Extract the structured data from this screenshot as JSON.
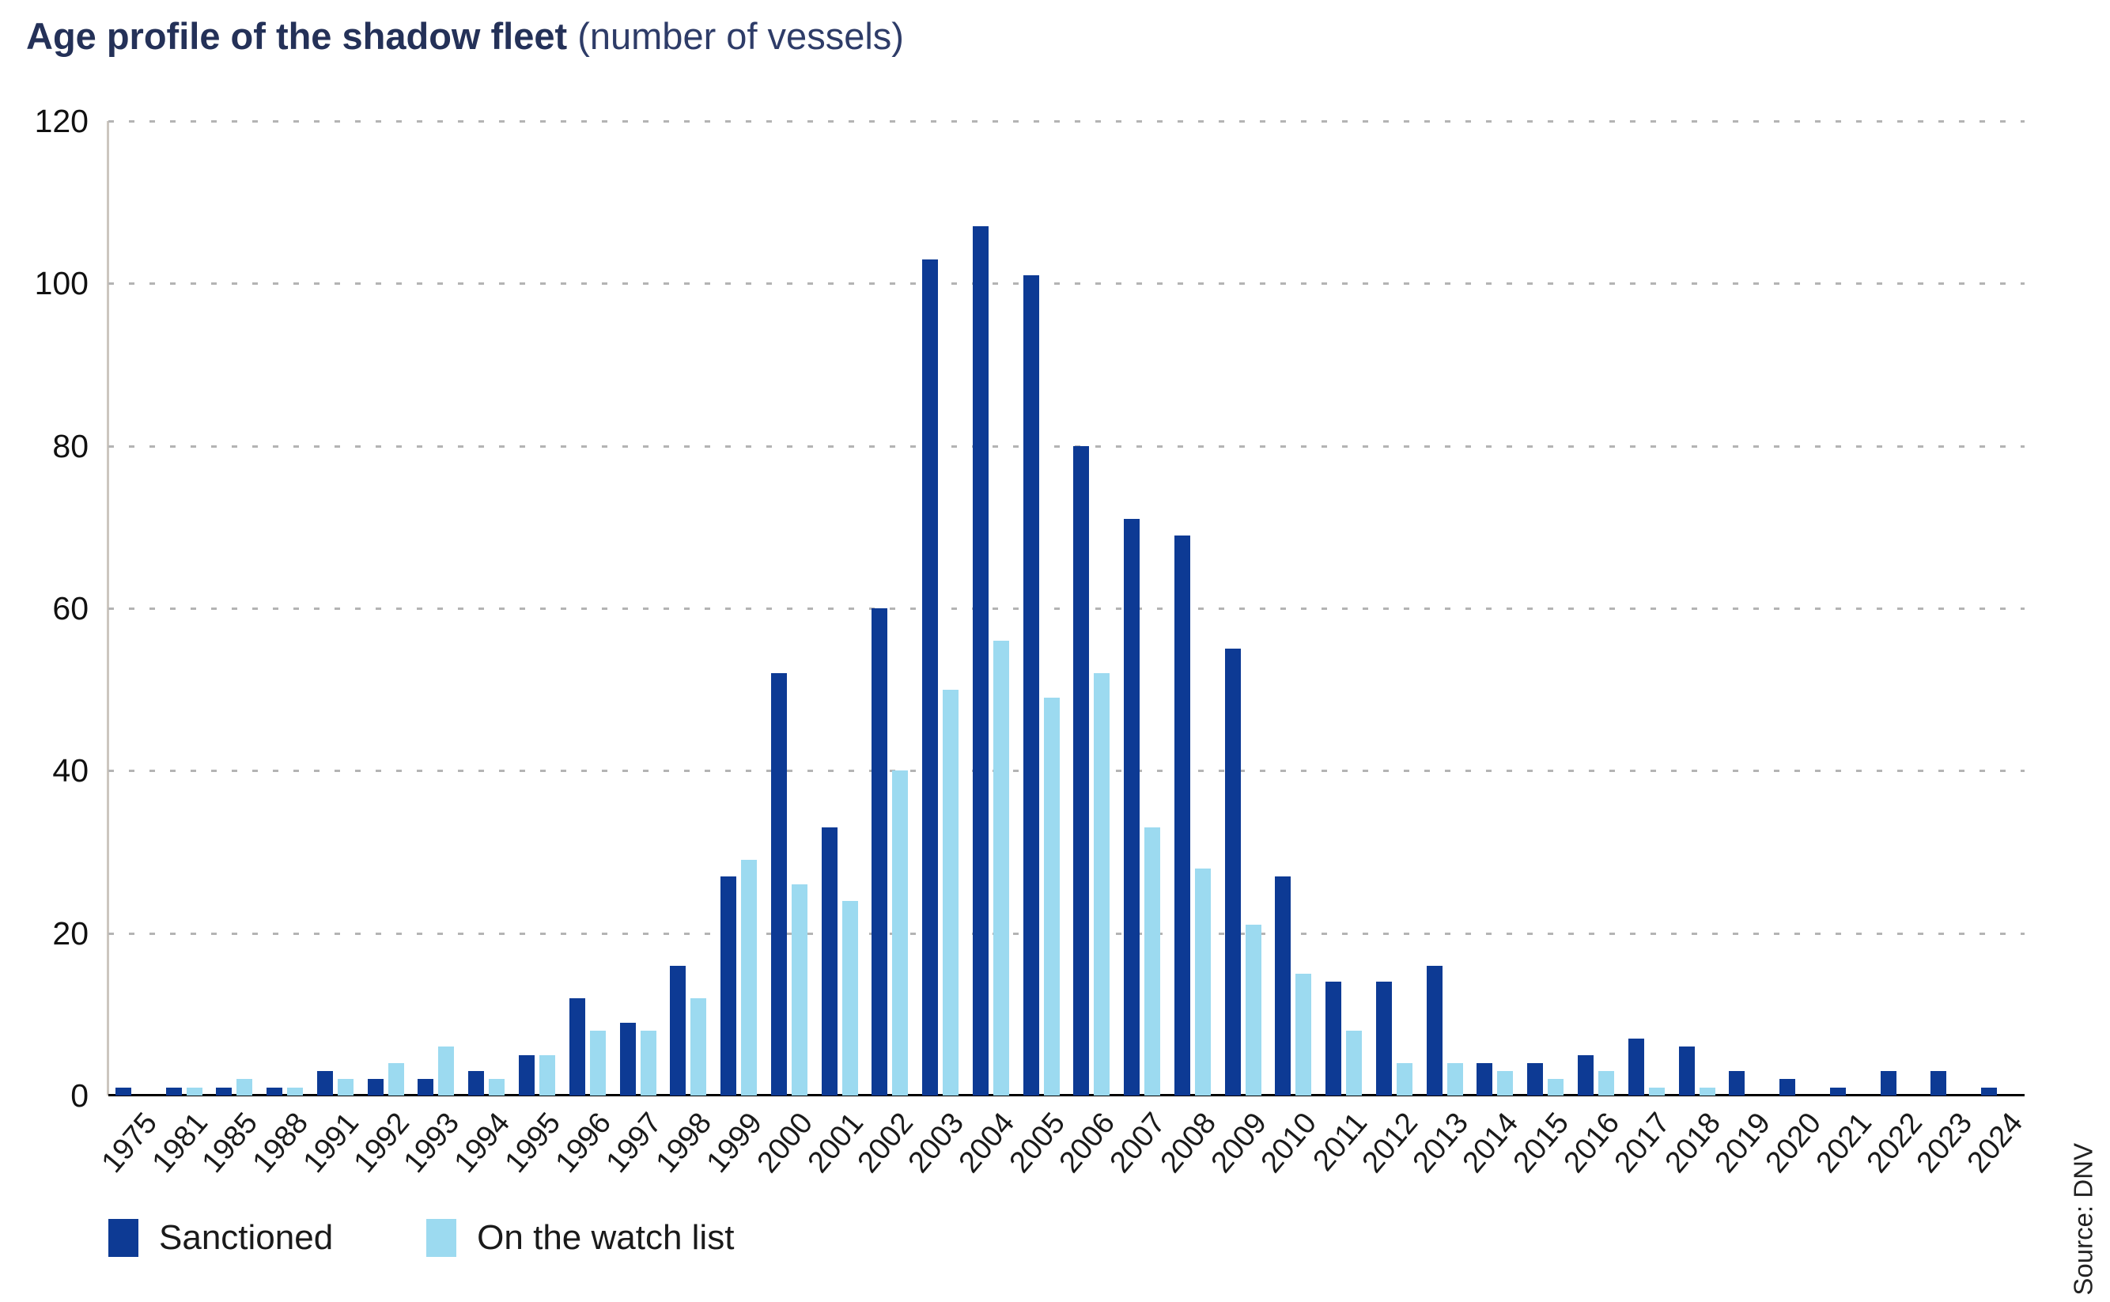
{
  "title": {
    "main": "Age profile of the shadow fleet",
    "sub": " (number of vessels)"
  },
  "source": "Source: DNV",
  "legend": [
    {
      "label": "Sanctioned",
      "color": "#0d3a94"
    },
    {
      "label": "On the watch list",
      "color": "#9cdaf0"
    }
  ],
  "colors": {
    "sanctioned": "#0d3a94",
    "watchlist": "#9cdaf0",
    "gridline": "#b4b4b4",
    "baseline": "#000000",
    "title_navy": "#243158"
  },
  "chart_data": {
    "type": "bar",
    "title": "Age profile of the shadow fleet (number of vessels)",
    "categories": [
      "1975",
      "1981",
      "1985",
      "1988",
      "1991",
      "1992",
      "1993",
      "1994",
      "1995",
      "1996",
      "1997",
      "1998",
      "1999",
      "2000",
      "2001",
      "2002",
      "2003",
      "2004",
      "2005",
      "2006",
      "2007",
      "2008",
      "2009",
      "2010",
      "2011",
      "2012",
      "2013",
      "2014",
      "2015",
      "2016",
      "2017",
      "2018",
      "2019",
      "2020",
      "2021",
      "2022",
      "2023",
      "2024"
    ],
    "series": [
      {
        "name": "Sanctioned",
        "color": "#0d3a94",
        "values": [
          1,
          1,
          1,
          1,
          3,
          2,
          2,
          3,
          5,
          12,
          9,
          16,
          27,
          52,
          33,
          60,
          103,
          107,
          101,
          80,
          71,
          69,
          55,
          27,
          14,
          14,
          16,
          4,
          4,
          5,
          7,
          6,
          3,
          2,
          1,
          3,
          3,
          1
        ]
      },
      {
        "name": "On the watch list",
        "color": "#9cdaf0",
        "values": [
          0,
          1,
          2,
          1,
          2,
          4,
          6,
          2,
          5,
          8,
          8,
          12,
          29,
          26,
          24,
          40,
          50,
          56,
          49,
          52,
          33,
          28,
          21,
          15,
          8,
          4,
          4,
          3,
          2,
          3,
          1,
          1,
          0,
          0,
          0,
          0,
          0,
          0
        ]
      }
    ],
    "xlabel": "",
    "ylabel": "",
    "ylim": [
      0,
      120
    ],
    "yticks": [
      0,
      20,
      40,
      60,
      80,
      100,
      120
    ],
    "grid": "dotted horizontal",
    "legend_position": "bottom-left"
  }
}
